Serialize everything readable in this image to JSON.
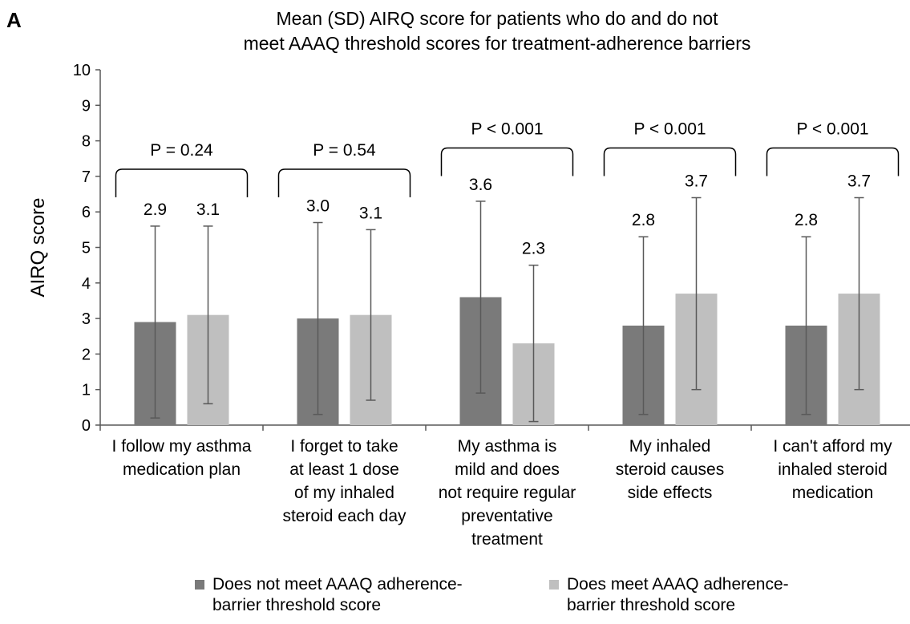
{
  "panel_label": "A",
  "colors": {
    "dark": "#7a7a7a",
    "light": "#bfbfbf",
    "axis": "#595959",
    "error": "#595959",
    "bracket": "#000000"
  },
  "legend": [
    {
      "label": "Does not meet AAAQ adherence-\nbarrier threshold score",
      "color": "#7a7a7a"
    },
    {
      "label": "Does meet AAAQ adherence-\nbarrier threshold score",
      "color": "#bfbfbf"
    }
  ],
  "chart_data": {
    "type": "bar",
    "title": "Mean (SD) AIRQ score for patients who do and do not\nmeet AAAQ threshold scores for treatment-adherence barriers",
    "xlabel": "",
    "ylabel": "AIRQ score",
    "ylim": [
      0,
      10
    ],
    "yticks": [
      0,
      1,
      2,
      3,
      4,
      5,
      6,
      7,
      8,
      9,
      10
    ],
    "grid": false,
    "legend_position": "bottom",
    "categories": [
      "I follow my asthma\nmedication plan",
      "I forget to take\nat least 1 dose\nof my inhaled\nsteroid each day",
      "My asthma is\nmild and does\nnot require regular\npreventative\ntreatment",
      "My inhaled\nsteroid causes\nside effects",
      "I can't afford my\ninhaled steroid\nmedication"
    ],
    "series": [
      {
        "name": "Does not meet AAAQ adherence-barrier threshold score",
        "values": [
          2.9,
          3.0,
          3.6,
          2.8,
          2.8
        ],
        "labels": [
          "2.9",
          "3.0",
          "3.6",
          "2.8",
          "2.8"
        ],
        "error_low": [
          0.2,
          0.3,
          0.9,
          0.3,
          0.3
        ],
        "error_high": [
          5.6,
          5.7,
          6.3,
          5.3,
          5.3
        ]
      },
      {
        "name": "Does meet AAAQ adherence-barrier threshold score",
        "values": [
          3.1,
          3.1,
          2.3,
          3.7,
          3.7
        ],
        "labels": [
          "3.1",
          "3.1",
          "2.3",
          "3.7",
          "3.7"
        ],
        "error_low": [
          0.6,
          0.7,
          0.1,
          1.0,
          1.0
        ],
        "error_high": [
          5.6,
          5.5,
          4.5,
          6.4,
          6.4
        ]
      }
    ],
    "annotations": [
      {
        "text": "P = 0.24",
        "bracket_y": 7.2
      },
      {
        "text": "P = 0.54",
        "bracket_y": 7.2
      },
      {
        "text": "P < 0.001",
        "bracket_y": 7.8
      },
      {
        "text": "P < 0.001",
        "bracket_y": 7.8
      },
      {
        "text": "P < 0.001",
        "bracket_y": 7.8
      }
    ]
  }
}
